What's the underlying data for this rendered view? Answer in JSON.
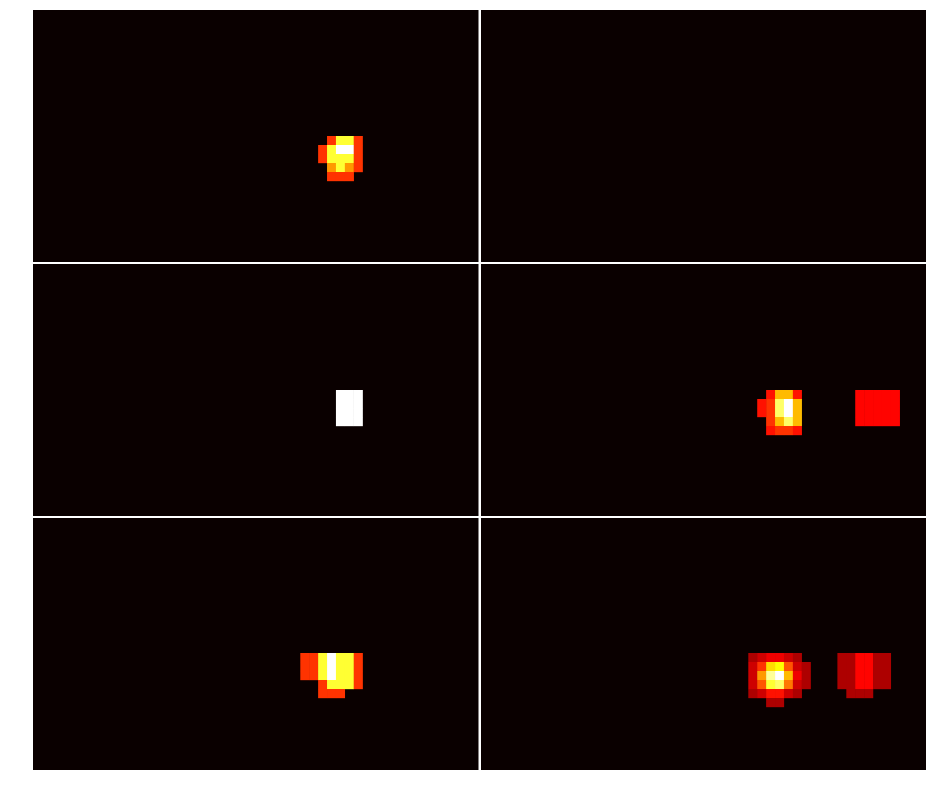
{
  "chart_data": {
    "type": "heatmap",
    "layout": {
      "rows": 3,
      "cols": 2
    },
    "grid": false,
    "colormap": "hot",
    "background_color": "#0a0000",
    "panel_shape": [
      28,
      50
    ],
    "panels": [
      {
        "row": 0,
        "col": 0,
        "cells": [
          [
            14,
            33,
            0.45
          ],
          [
            14,
            34,
            0.8
          ],
          [
            14,
            35,
            0.8
          ],
          [
            14,
            36,
            0.45
          ],
          [
            15,
            32,
            0.45
          ],
          [
            15,
            33,
            0.8
          ],
          [
            15,
            34,
            1.0
          ],
          [
            15,
            35,
            1.0
          ],
          [
            15,
            36,
            0.45
          ],
          [
            16,
            32,
            0.45
          ],
          [
            16,
            33,
            0.8
          ],
          [
            16,
            34,
            0.8
          ],
          [
            16,
            35,
            0.8
          ],
          [
            16,
            36,
            0.45
          ],
          [
            17,
            33,
            0.6
          ],
          [
            17,
            34,
            0.8
          ],
          [
            17,
            35,
            0.6
          ],
          [
            17,
            36,
            0.45
          ],
          [
            18,
            33,
            0.45
          ],
          [
            18,
            34,
            0.45
          ],
          [
            18,
            35,
            0.45
          ]
        ]
      },
      {
        "row": 0,
        "col": 1,
        "cells": []
      },
      {
        "row": 1,
        "col": 0,
        "cells": [
          [
            14,
            34,
            1.0
          ],
          [
            14,
            35,
            1.0
          ],
          [
            14,
            36,
            1.0
          ],
          [
            15,
            34,
            1.0
          ],
          [
            15,
            35,
            1.0
          ],
          [
            15,
            36,
            1.0
          ],
          [
            16,
            34,
            1.0
          ],
          [
            16,
            35,
            1.0
          ],
          [
            16,
            36,
            1.0
          ],
          [
            17,
            34,
            1.0
          ],
          [
            17,
            35,
            1.0
          ],
          [
            17,
            36,
            1.0
          ]
        ]
      },
      {
        "row": 1,
        "col": 1,
        "cells": [
          [
            14,
            32,
            0.4
          ],
          [
            14,
            33,
            0.65
          ],
          [
            14,
            34,
            0.65
          ],
          [
            14,
            35,
            0.4
          ],
          [
            15,
            32,
            0.45
          ],
          [
            15,
            33,
            0.85
          ],
          [
            15,
            34,
            1.0
          ],
          [
            15,
            35,
            0.65
          ],
          [
            16,
            32,
            0.45
          ],
          [
            16,
            33,
            0.85
          ],
          [
            16,
            34,
            1.0
          ],
          [
            16,
            35,
            0.65
          ],
          [
            17,
            32,
            0.45
          ],
          [
            17,
            33,
            0.65
          ],
          [
            17,
            34,
            0.85
          ],
          [
            17,
            35,
            0.65
          ],
          [
            18,
            32,
            0.4
          ],
          [
            18,
            33,
            0.45
          ],
          [
            18,
            34,
            0.45
          ],
          [
            18,
            35,
            0.4
          ],
          [
            15,
            31,
            0.4
          ],
          [
            16,
            31,
            0.4
          ],
          [
            14,
            42,
            0.38
          ],
          [
            14,
            43,
            0.38
          ],
          [
            14,
            44,
            0.38
          ],
          [
            14,
            45,
            0.38
          ],
          [
            14,
            46,
            0.38
          ],
          [
            15,
            42,
            0.38
          ],
          [
            15,
            43,
            0.38
          ],
          [
            15,
            44,
            0.38
          ],
          [
            15,
            45,
            0.38
          ],
          [
            15,
            46,
            0.38
          ],
          [
            16,
            42,
            0.38
          ],
          [
            16,
            43,
            0.38
          ],
          [
            16,
            44,
            0.38
          ],
          [
            16,
            45,
            0.38
          ],
          [
            16,
            46,
            0.38
          ],
          [
            17,
            42,
            0.38
          ],
          [
            17,
            43,
            0.38
          ],
          [
            17,
            44,
            0.38
          ],
          [
            17,
            45,
            0.38
          ],
          [
            17,
            46,
            0.38
          ]
        ]
      },
      {
        "row": 2,
        "col": 0,
        "cells": [
          [
            15,
            30,
            0.45
          ],
          [
            15,
            31,
            0.45
          ],
          [
            15,
            32,
            0.8
          ],
          [
            15,
            33,
            1.0
          ],
          [
            15,
            34,
            0.8
          ],
          [
            15,
            35,
            0.8
          ],
          [
            15,
            36,
            0.45
          ],
          [
            16,
            30,
            0.45
          ],
          [
            16,
            31,
            0.45
          ],
          [
            16,
            32,
            0.8
          ],
          [
            16,
            33,
            1.0
          ],
          [
            16,
            34,
            0.8
          ],
          [
            16,
            35,
            0.8
          ],
          [
            16,
            36,
            0.45
          ],
          [
            17,
            30,
            0.45
          ],
          [
            17,
            31,
            0.45
          ],
          [
            17,
            32,
            0.8
          ],
          [
            17,
            33,
            1.0
          ],
          [
            17,
            34,
            0.8
          ],
          [
            17,
            35,
            0.8
          ],
          [
            17,
            36,
            0.45
          ],
          [
            18,
            32,
            0.45
          ],
          [
            18,
            33,
            0.8
          ],
          [
            18,
            34,
            0.8
          ],
          [
            18,
            35,
            0.8
          ],
          [
            18,
            36,
            0.45
          ],
          [
            19,
            32,
            0.45
          ],
          [
            19,
            33,
            0.45
          ],
          [
            19,
            34,
            0.45
          ]
        ]
      },
      {
        "row": 2,
        "col": 1,
        "cells": [
          [
            15,
            30,
            0.25
          ],
          [
            15,
            31,
            0.3
          ],
          [
            15,
            32,
            0.35
          ],
          [
            15,
            33,
            0.35
          ],
          [
            15,
            34,
            0.3
          ],
          [
            15,
            35,
            0.25
          ],
          [
            16,
            30,
            0.3
          ],
          [
            16,
            31,
            0.45
          ],
          [
            16,
            32,
            0.7
          ],
          [
            16,
            33,
            0.75
          ],
          [
            16,
            34,
            0.5
          ],
          [
            16,
            35,
            0.3
          ],
          [
            16,
            36,
            0.25
          ],
          [
            17,
            30,
            0.3
          ],
          [
            17,
            31,
            0.6
          ],
          [
            17,
            32,
            0.9
          ],
          [
            17,
            33,
            1.0
          ],
          [
            17,
            34,
            0.65
          ],
          [
            17,
            35,
            0.35
          ],
          [
            17,
            36,
            0.25
          ],
          [
            18,
            30,
            0.3
          ],
          [
            18,
            31,
            0.5
          ],
          [
            18,
            32,
            0.8
          ],
          [
            18,
            33,
            0.85
          ],
          [
            18,
            34,
            0.55
          ],
          [
            18,
            35,
            0.3
          ],
          [
            18,
            36,
            0.25
          ],
          [
            19,
            30,
            0.25
          ],
          [
            19,
            31,
            0.3
          ],
          [
            19,
            32,
            0.4
          ],
          [
            19,
            33,
            0.4
          ],
          [
            19,
            34,
            0.3
          ],
          [
            19,
            35,
            0.25
          ],
          [
            20,
            32,
            0.25
          ],
          [
            20,
            33,
            0.25
          ],
          [
            15,
            40,
            0.25
          ],
          [
            15,
            41,
            0.25
          ],
          [
            15,
            42,
            0.38
          ],
          [
            15,
            43,
            0.38
          ],
          [
            15,
            44,
            0.25
          ],
          [
            15,
            45,
            0.25
          ],
          [
            16,
            40,
            0.25
          ],
          [
            16,
            41,
            0.25
          ],
          [
            16,
            42,
            0.38
          ],
          [
            16,
            43,
            0.38
          ],
          [
            16,
            44,
            0.25
          ],
          [
            16,
            45,
            0.25
          ],
          [
            17,
            40,
            0.25
          ],
          [
            17,
            41,
            0.25
          ],
          [
            17,
            42,
            0.38
          ],
          [
            17,
            43,
            0.38
          ],
          [
            17,
            44,
            0.25
          ],
          [
            17,
            45,
            0.25
          ],
          [
            18,
            40,
            0.25
          ],
          [
            18,
            41,
            0.25
          ],
          [
            18,
            42,
            0.38
          ],
          [
            18,
            43,
            0.38
          ],
          [
            18,
            44,
            0.25
          ],
          [
            18,
            45,
            0.25
          ],
          [
            19,
            41,
            0.25
          ],
          [
            19,
            42,
            0.25
          ],
          [
            19,
            43,
            0.25
          ]
        ]
      }
    ]
  }
}
